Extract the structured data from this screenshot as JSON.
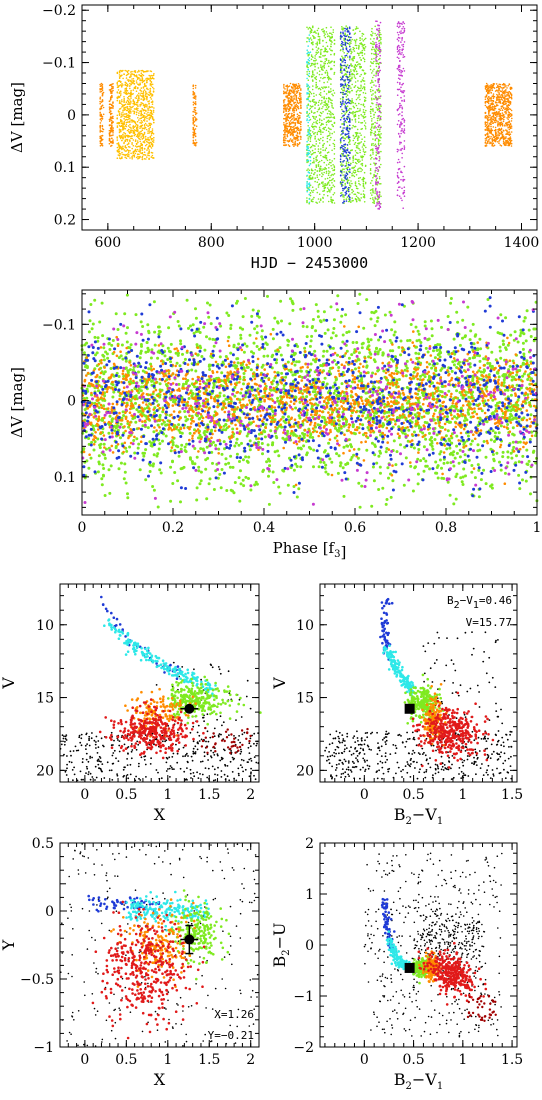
{
  "colors": {
    "orange": "#ff8c00",
    "gold": "#ffc000",
    "green": "#7fea20",
    "blue": "#1f3bd6",
    "cyan": "#2ee8e8",
    "magenta": "#c63ad0",
    "red": "#e11a1a",
    "darkred": "#a00000",
    "black": "#000000"
  },
  "chart_data": [
    {
      "id": "p1",
      "type": "scatter",
      "title": "",
      "xlabel": "HJD − 2453000",
      "ylabel": "ΔV [mag]",
      "xlim": [
        550,
        1430
      ],
      "ylim": [
        0.22,
        -0.21
      ],
      "xticks": [
        "600",
        "800",
        "1000",
        "1200",
        "1400"
      ],
      "yticks": [
        "−0.2",
        "−0.1",
        "0",
        "0.1",
        "0.2"
      ],
      "series": [
        {
          "color": "gold",
          "x_ranges": [
            [
              618,
              690
            ]
          ],
          "y_halfwidth": 0.085
        },
        {
          "color": "orange",
          "x_ranges": [
            [
              585,
              592
            ],
            [
              603,
              612
            ],
            [
              765,
              772
            ],
            [
              940,
              975
            ],
            [
              1330,
              1382
            ]
          ],
          "y_halfwidth": 0.06
        },
        {
          "color": "green",
          "x_ranges": [
            [
              985,
              1040
            ],
            [
              1050,
              1100
            ],
            [
              1108,
              1130
            ]
          ],
          "y_halfwidth": 0.17
        },
        {
          "color": "blue",
          "x_ranges": [
            [
              1050,
              1070
            ]
          ],
          "y_halfwidth": 0.17
        },
        {
          "color": "cyan",
          "x_ranges": [
            [
              985,
              992
            ]
          ],
          "y_halfwidth": 0.17
        },
        {
          "color": "magenta",
          "x_ranges": [
            [
              1118,
              1128
            ],
            [
              1160,
              1175
            ]
          ],
          "y_halfwidth": 0.18
        }
      ]
    },
    {
      "id": "p2",
      "type": "scatter",
      "title": "",
      "xlabel": "Phase [f3]",
      "xlabel_base": "Phase [f",
      "xlabel_sub": "3",
      "xlabel_end": "]",
      "ylabel": "ΔV [mag]",
      "xlim": [
        0,
        1
      ],
      "ylim": [
        0.15,
        -0.145
      ],
      "xticks": [
        "0",
        "0.2",
        "0.4",
        "0.6",
        "0.8",
        "1"
      ],
      "yticks": [
        "−0.1",
        "0",
        "0.1"
      ],
      "series": [
        {
          "color": "green",
          "y_halfwidth": 0.13
        },
        {
          "color": "orange",
          "y_halfwidth": 0.07
        },
        {
          "color": "blue",
          "y_halfwidth": 0.11
        },
        {
          "color": "magenta",
          "y_halfwidth": 0.13
        }
      ]
    },
    {
      "id": "p3",
      "type": "scatter",
      "title": "",
      "xlabel": "X",
      "ylabel": "V",
      "xlim": [
        -0.3,
        2.1
      ],
      "ylim": [
        20.8,
        7.2
      ],
      "xticks": [
        "0",
        "0.5",
        "1",
        "1.5",
        "2"
      ],
      "yticks": [
        "10",
        "15",
        "20"
      ],
      "marker": {
        "x": 1.26,
        "y": 15.77
      },
      "sequence": [
        {
          "color": "blue",
          "x": [
            0.05,
            0.2,
            0.3,
            0.45,
            0.55
          ],
          "y": [
            9.5,
            8.2,
            10.5,
            11.5,
            12.0
          ]
        },
        {
          "color": "cyan",
          "x": [
            0.2,
            0.4,
            0.65,
            0.9,
            1.2,
            1.4
          ],
          "y": [
            9.7,
            11.5,
            12.5,
            13.4,
            14.0,
            14.6
          ]
        },
        {
          "color": "green",
          "x": [
            1.15,
            1.35,
            1.55,
            1.45
          ],
          "y": [
            15.0,
            15.5,
            15.2,
            16.2
          ]
        },
        {
          "color": "orange",
          "x": [
            0.85,
            1.05,
            1.2
          ],
          "y": [
            16.0,
            15.8,
            16.8
          ]
        },
        {
          "color": "red",
          "x": [
            0.75,
            0.95,
            0.8
          ],
          "y": [
            16.8,
            17.5,
            18.0
          ]
        },
        {
          "color": "black",
          "x": [
            -0.2,
            0.5,
            1.2,
            1.9
          ],
          "y": [
            18.0,
            18.8,
            18.2,
            18.9
          ]
        }
      ]
    },
    {
      "id": "p4",
      "type": "scatter",
      "title": "",
      "xlabel": "B2−V1",
      "ylabel": "V",
      "xlim": [
        -0.45,
        1.55
      ],
      "ylim": [
        20.8,
        7.2
      ],
      "xticks": [
        "0",
        "0.5",
        "1",
        "1.5"
      ],
      "yticks": [
        "10",
        "15",
        "20"
      ],
      "marker": {
        "x": 0.46,
        "y": 15.77
      },
      "annotation_lines": [
        {
          "base": "B",
          "sub": "2",
          "mid": "−V",
          "sub2": "1",
          "end": "=0.46"
        },
        {
          "base": "V=15.77"
        }
      ],
      "xlabel_parts": {
        "base": "B",
        "sub": "2",
        "mid": "−V",
        "sub2": "1"
      }
    },
    {
      "id": "p5",
      "type": "scatter",
      "title": "",
      "xlabel": "X",
      "ylabel": "Y",
      "xlim": [
        -0.3,
        2.1
      ],
      "ylim": [
        -1.0,
        0.5
      ],
      "xticks": [
        "0",
        "0.5",
        "1",
        "1.5",
        "2"
      ],
      "yticks": [
        "0.5",
        "0",
        "−0.5",
        "−1"
      ],
      "marker": {
        "x": 1.26,
        "y": -0.21
      },
      "annotation_lines": [
        {
          "base": "X=1.26"
        },
        {
          "base": "Y=−0.21"
        }
      ]
    },
    {
      "id": "p6",
      "type": "scatter",
      "title": "",
      "xlabel": "B2−V1",
      "ylabel": "B2−U",
      "xlim": [
        -0.45,
        1.55
      ],
      "ylim": [
        -2.0,
        2.0
      ],
      "xticks": [
        "0",
        "0.5",
        "1",
        "1.5"
      ],
      "yticks": [
        "2",
        "1",
        "0",
        "−1",
        "−2"
      ],
      "marker": {
        "x": 0.46,
        "y": -0.45
      },
      "xlabel_parts": {
        "base": "B",
        "sub": "2",
        "mid": "−V",
        "sub2": "1"
      },
      "ylabel_parts": {
        "base": "B",
        "sub": "2",
        "mid": "−U"
      }
    }
  ]
}
